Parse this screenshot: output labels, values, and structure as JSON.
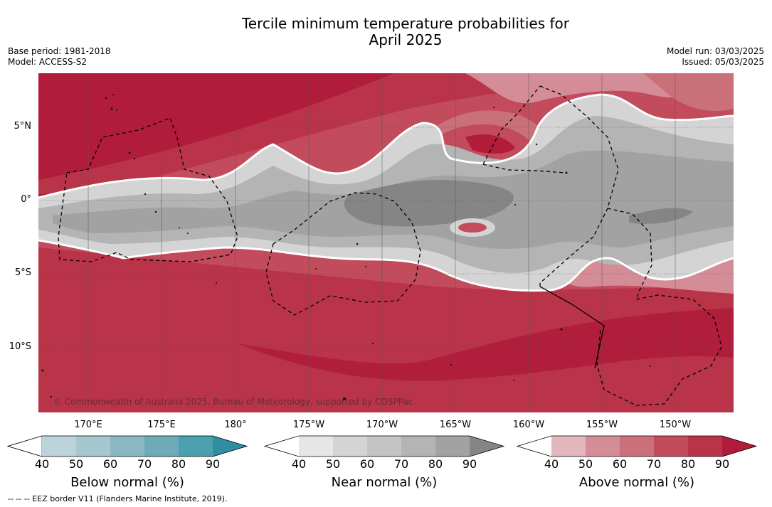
{
  "title_line1": "Tercile minimum temperature probabilities for",
  "title_line2": "April 2025",
  "meta": {
    "base_period": "Base period: 1981-2018",
    "model": "Model: ACCESS-S2",
    "model_run": "Model run: 03/03/2025",
    "issued": "Issued: 05/03/2025"
  },
  "credit": "© Commonwealth of Australia 2025, Bureau of Meteorology, supported by COSPPac",
  "lat_labels": [
    "5°N",
    "0°",
    "5°S",
    "10°S"
  ],
  "lon_labels": [
    "170°E",
    "175°E",
    "180°",
    "175°W",
    "170°W",
    "165°W",
    "160°W",
    "155°W",
    "150°W"
  ],
  "colorbars": [
    {
      "title": "Below normal (%)",
      "ticks": [
        "40",
        "50",
        "60",
        "70",
        "80",
        "90"
      ],
      "colors": [
        "#ffffff",
        "#bcd3da",
        "#a6c7ce",
        "#8ab8c2",
        "#6eaab7",
        "#4b9fae",
        "#2e8fa2"
      ]
    },
    {
      "title": "Near normal (%)",
      "ticks": [
        "40",
        "50",
        "60",
        "70",
        "80",
        "90"
      ],
      "colors": [
        "#ffffff",
        "#e6e6e6",
        "#d4d4d4",
        "#c4c4c4",
        "#b4b4b4",
        "#a2a2a2",
        "#858585"
      ]
    },
    {
      "title": "Above normal (%)",
      "ticks": [
        "40",
        "50",
        "60",
        "70",
        "80",
        "90"
      ],
      "colors": [
        "#ffffff",
        "#e2b7bd",
        "#d48d97",
        "#c97079",
        "#c24b5c",
        "#b93448",
        "#b01c3a"
      ]
    }
  ],
  "footnote": "-- -- -- EEZ border V11 (Flanders Marine Institute, 2019)."
}
